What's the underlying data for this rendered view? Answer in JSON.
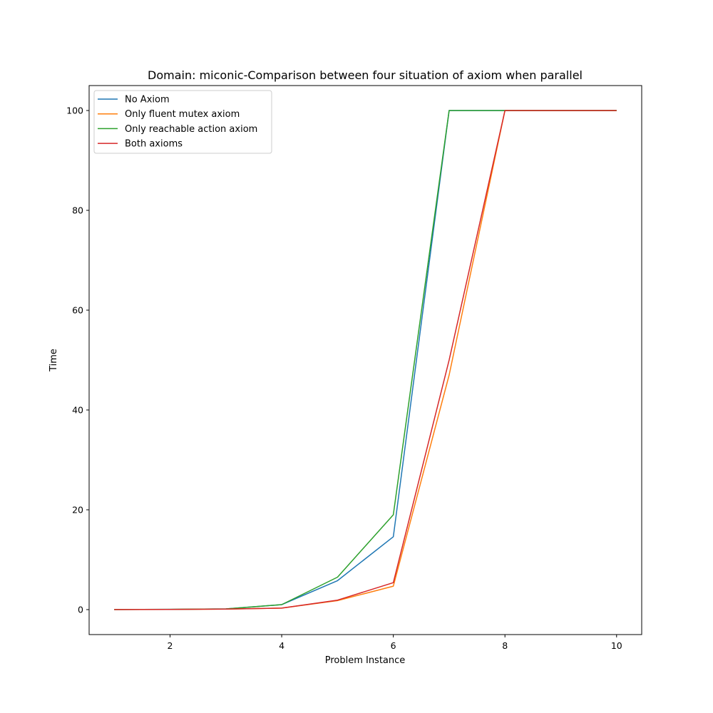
{
  "chart_data": {
    "type": "line",
    "title": "Domain: miconic-Comparison between four situation of axiom when parallel",
    "xlabel": "Problem Instance",
    "ylabel": "Time",
    "xlim": [
      0.55,
      10.45
    ],
    "ylim": [
      -5,
      105
    ],
    "xticks": [
      2,
      4,
      6,
      8,
      10
    ],
    "yticks": [
      0,
      20,
      40,
      60,
      80,
      100
    ],
    "grid": false,
    "legend_position": "top-left",
    "x": [
      1,
      2,
      3,
      4,
      5,
      6,
      7,
      8,
      9,
      10
    ],
    "series": [
      {
        "name": "No Axiom",
        "color": "#1f77b4",
        "values": [
          0.02,
          0.05,
          0.15,
          1.0,
          5.8,
          14.6,
          100,
          100,
          100,
          100
        ]
      },
      {
        "name": "Only fluent mutex axiom",
        "color": "#ff7f0e",
        "values": [
          0.02,
          0.04,
          0.1,
          0.3,
          1.8,
          4.7,
          47,
          100,
          100,
          100
        ]
      },
      {
        "name": "Only reachable action axiom",
        "color": "#2ca02c",
        "values": [
          0.02,
          0.05,
          0.15,
          1.0,
          6.5,
          19.0,
          100,
          100,
          100,
          100
        ]
      },
      {
        "name": "Both axioms",
        "color": "#d62728",
        "values": [
          0.02,
          0.04,
          0.1,
          0.3,
          1.9,
          5.4,
          50,
          100,
          100,
          100
        ]
      }
    ]
  }
}
